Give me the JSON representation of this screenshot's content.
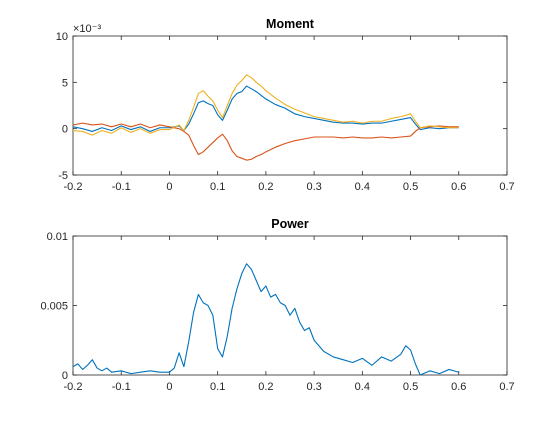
{
  "chart_data": [
    {
      "type": "line",
      "title": "Moment",
      "xlabel": "",
      "ylabel": "",
      "xlim": [
        -0.2,
        0.7
      ],
      "ylim": [
        -5,
        10
      ],
      "y_exponent_label": "×10⁻³",
      "y_scale": 0.001,
      "xticks": [
        -0.2,
        -0.1,
        0,
        0.1,
        0.2,
        0.3,
        0.4,
        0.5,
        0.6,
        0.7
      ],
      "xtick_labels": [
        "-0.2",
        "-0.1",
        "0",
        "0.1",
        "0.2",
        "0.3",
        "0.4",
        "0.5",
        "0.6",
        "0.7"
      ],
      "yticks": [
        -5,
        0,
        5,
        10
      ],
      "ytick_labels": [
        "-5",
        "0",
        "5",
        "10"
      ],
      "grid": false,
      "x": [
        -0.2,
        -0.18,
        -0.16,
        -0.14,
        -0.12,
        -0.1,
        -0.08,
        -0.06,
        -0.04,
        -0.02,
        0.0,
        0.02,
        0.03,
        0.04,
        0.05,
        0.06,
        0.07,
        0.08,
        0.09,
        0.1,
        0.11,
        0.12,
        0.13,
        0.14,
        0.15,
        0.16,
        0.17,
        0.18,
        0.19,
        0.2,
        0.22,
        0.24,
        0.26,
        0.28,
        0.3,
        0.32,
        0.34,
        0.36,
        0.38,
        0.4,
        0.42,
        0.44,
        0.46,
        0.48,
        0.5,
        0.51,
        0.52,
        0.54,
        0.56,
        0.58,
        0.6
      ],
      "series": [
        {
          "color": "#0072BD",
          "values": [
            0.2,
            0.0,
            -0.3,
            0.1,
            -0.2,
            0.3,
            -0.1,
            0.2,
            -0.3,
            0.1,
            0.1,
            0.3,
            -0.2,
            0.5,
            1.6,
            2.8,
            3.0,
            2.7,
            2.5,
            1.5,
            0.9,
            2.0,
            3.2,
            3.8,
            4.0,
            4.6,
            4.3,
            4.0,
            3.6,
            3.2,
            2.6,
            2.2,
            1.6,
            1.3,
            1.1,
            0.9,
            0.7,
            0.6,
            0.6,
            0.5,
            0.6,
            0.6,
            0.8,
            1.0,
            1.2,
            0.5,
            -0.1,
            0.1,
            0.0,
            0.1,
            0.1
          ]
        },
        {
          "color": "#D95319",
          "values": [
            0.4,
            0.6,
            0.4,
            0.5,
            0.2,
            0.5,
            0.2,
            0.5,
            0.1,
            0.4,
            0.2,
            0.0,
            -0.3,
            -0.7,
            -1.8,
            -2.8,
            -2.5,
            -2.0,
            -1.5,
            -1.0,
            -0.6,
            -1.3,
            -2.4,
            -3.0,
            -3.2,
            -3.4,
            -3.3,
            -3.0,
            -2.8,
            -2.5,
            -2.0,
            -1.6,
            -1.3,
            -1.1,
            -0.9,
            -0.9,
            -0.9,
            -1.0,
            -0.9,
            -1.0,
            -1.0,
            -0.9,
            -1.0,
            -0.9,
            -0.8,
            -0.3,
            0.1,
            0.2,
            0.3,
            0.2,
            0.2
          ]
        },
        {
          "color": "#EDB120",
          "values": [
            -0.2,
            -0.3,
            -0.7,
            -0.2,
            -0.5,
            0.1,
            -0.4,
            0.0,
            -0.5,
            -0.1,
            -0.1,
            0.4,
            -0.2,
            0.9,
            2.3,
            3.8,
            4.1,
            3.5,
            3.0,
            2.0,
            1.2,
            2.5,
            3.8,
            4.7,
            5.2,
            5.8,
            5.5,
            5.0,
            4.6,
            4.1,
            3.3,
            2.6,
            2.1,
            1.7,
            1.3,
            1.1,
            0.9,
            0.7,
            0.8,
            0.6,
            0.8,
            0.8,
            1.1,
            1.3,
            1.6,
            0.8,
            0.1,
            0.3,
            0.2,
            0.1,
            0.1
          ]
        }
      ]
    },
    {
      "type": "line",
      "title": "Power",
      "xlabel": "",
      "ylabel": "",
      "xlim": [
        -0.2,
        0.7
      ],
      "ylim": [
        0,
        0.01
      ],
      "xticks": [
        -0.2,
        -0.1,
        0,
        0.1,
        0.2,
        0.3,
        0.4,
        0.5,
        0.6,
        0.7
      ],
      "xtick_labels": [
        "-0.2",
        "-0.1",
        "0",
        "0.1",
        "0.2",
        "0.3",
        "0.4",
        "0.5",
        "0.6",
        "0.7"
      ],
      "yticks": [
        0,
        0.005,
        0.01
      ],
      "ytick_labels": [
        "0",
        "0.005",
        "0.01"
      ],
      "grid": false,
      "x": [
        -0.2,
        -0.19,
        -0.18,
        -0.17,
        -0.16,
        -0.15,
        -0.14,
        -0.13,
        -0.12,
        -0.1,
        -0.08,
        -0.06,
        -0.04,
        -0.02,
        0.0,
        0.01,
        0.02,
        0.03,
        0.04,
        0.05,
        0.06,
        0.07,
        0.08,
        0.09,
        0.1,
        0.11,
        0.12,
        0.13,
        0.14,
        0.15,
        0.16,
        0.17,
        0.18,
        0.19,
        0.2,
        0.21,
        0.22,
        0.23,
        0.24,
        0.25,
        0.26,
        0.27,
        0.28,
        0.29,
        0.3,
        0.32,
        0.34,
        0.36,
        0.38,
        0.4,
        0.42,
        0.44,
        0.46,
        0.48,
        0.49,
        0.5,
        0.51,
        0.52,
        0.54,
        0.56,
        0.58,
        0.6
      ],
      "series": [
        {
          "color": "#0072BD",
          "values": [
            0.0006,
            0.0008,
            0.0004,
            0.0007,
            0.0011,
            0.0005,
            0.0003,
            0.0005,
            0.0002,
            0.0003,
            0.0001,
            0.0002,
            0.0003,
            0.0002,
            0.0002,
            0.0005,
            0.0016,
            0.0006,
            0.0024,
            0.0045,
            0.0058,
            0.0052,
            0.005,
            0.0043,
            0.0019,
            0.0013,
            0.0028,
            0.0048,
            0.0062,
            0.0073,
            0.008,
            0.0076,
            0.0068,
            0.006,
            0.0064,
            0.0056,
            0.0058,
            0.0052,
            0.005,
            0.0043,
            0.0048,
            0.0038,
            0.0032,
            0.0034,
            0.0025,
            0.0017,
            0.0013,
            0.0011,
            0.0009,
            0.0012,
            0.0007,
            0.0013,
            0.001,
            0.0015,
            0.0021,
            0.0018,
            0.0008,
            0.0,
            0.0003,
            0.0001,
            0.0004,
            0.0002
          ]
        }
      ]
    }
  ]
}
